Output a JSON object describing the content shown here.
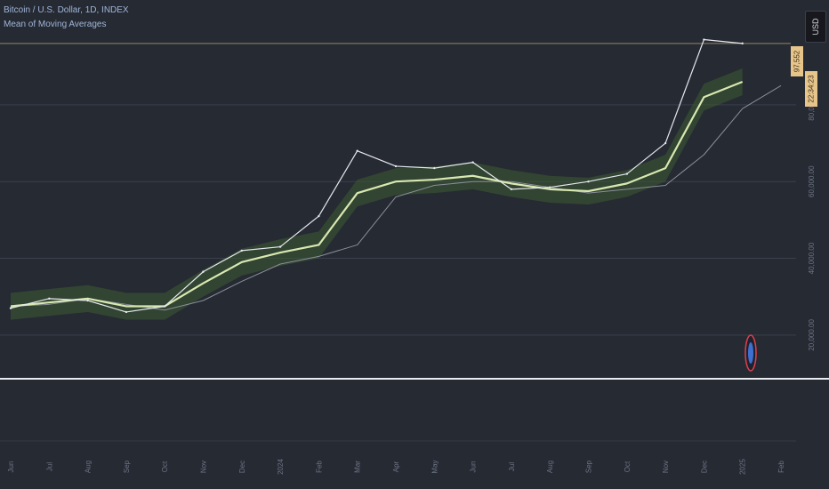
{
  "legend": {
    "symbol": "Bitcoin / U.S. Dollar, 1D, INDEX",
    "indicator": "Mean of Moving Averages"
  },
  "price_axis": {
    "currency": "USD",
    "last_price": "97,552",
    "countdown": "22:34:23",
    "ticks": [
      {
        "value": 80000,
        "label": "80,000.00"
      },
      {
        "value": 60000,
        "label": "60,000.00"
      },
      {
        "value": 40000,
        "label": "40,000.00"
      },
      {
        "value": 20000,
        "label": "20,000.00"
      }
    ]
  },
  "colors": {
    "background": "#262a33",
    "price_line": "#e6e8ee",
    "mean_line": "#d8e8b0",
    "band_fill": "#3c5a32",
    "ma_line": "#8a8e99",
    "last_price_line": "#c8b07a",
    "badge": "#e7c58a"
  },
  "chart_data": {
    "type": "line",
    "x": [
      "Jun 2023",
      "Jul 2023",
      "Aug 2023",
      "Sep 2023",
      "Oct 2023",
      "Nov 2023",
      "Dec 2023",
      "2024",
      "Feb 2024",
      "Mar 2024",
      "Apr 2024",
      "May 2024",
      "Jun 2024",
      "Jul 2024",
      "Aug 2024",
      "Sep 2024",
      "Oct 2024",
      "Nov 2024",
      "Dec 2024",
      "2025",
      "Feb 2025"
    ],
    "x_tick_labels": [
      "Jun",
      "Jul",
      "Aug",
      "Sep",
      "Oct",
      "Nov",
      "Dec",
      "2024",
      "Feb",
      "Mar",
      "Apr",
      "May",
      "Jun",
      "Jul",
      "Aug",
      "Sep",
      "Oct",
      "Nov",
      "Dec",
      "2025",
      "Feb"
    ],
    "ylim": [
      10000,
      105000
    ],
    "grid": true,
    "series": [
      {
        "values": [
          27000,
          29500,
          29000,
          26000,
          27500,
          36500,
          42000,
          43000,
          51000,
          68000,
          64000,
          63500,
          65000,
          58000,
          58500,
          60000,
          62000,
          70000,
          97000,
          96000,
          null
        ]
      },
      {
        "values": [
          27500,
          28500,
          29500,
          27500,
          27500,
          33500,
          39000,
          41500,
          43500,
          57000,
          60000,
          60500,
          61500,
          59500,
          58000,
          57500,
          59500,
          63500,
          82000,
          86000,
          null
        ]
      },
      {
        "values": [
          27500,
          28000,
          29500,
          28000,
          26500,
          29000,
          34000,
          38500,
          40500,
          43500,
          56000,
          59000,
          60000,
          60000,
          58500,
          57000,
          58000,
          59000,
          67000,
          79000,
          85000
        ]
      }
    ],
    "band": {
      "upper_offset": 3500,
      "lower_offset": 3500
    }
  }
}
